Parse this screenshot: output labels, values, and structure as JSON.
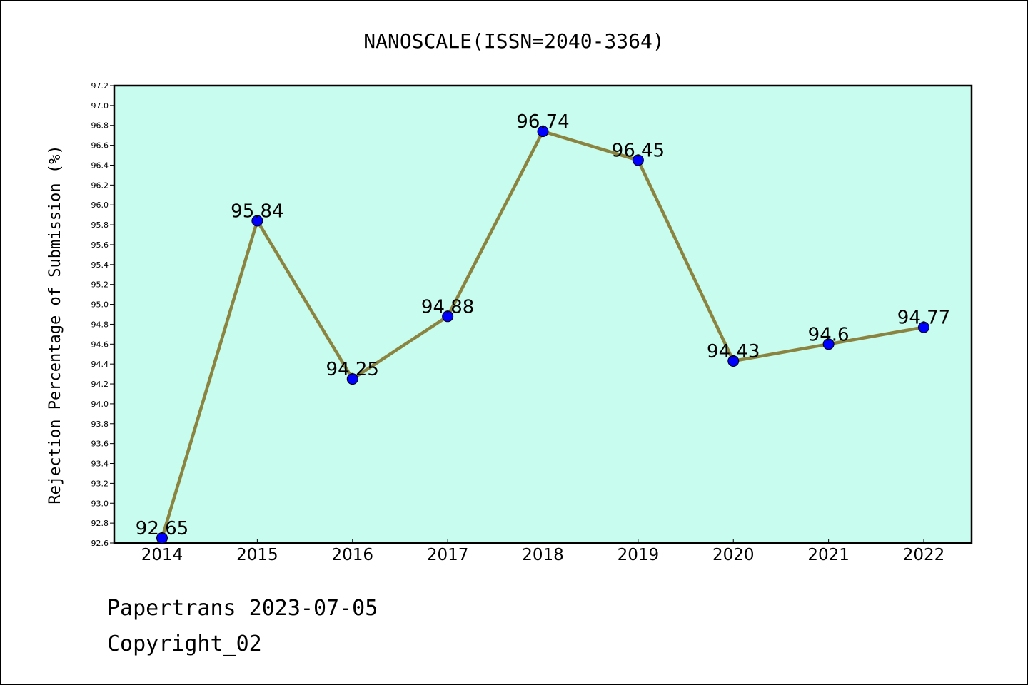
{
  "chart_data": {
    "type": "line",
    "title": "NANOSCALE(ISSN=2040-3364)",
    "xlabel": "",
    "ylabel": "Rejection Percentage of Submission (%)",
    "categories": [
      "2014",
      "2015",
      "2016",
      "2017",
      "2018",
      "2019",
      "2020",
      "2021",
      "2022"
    ],
    "series": [
      {
        "values": [
          92.65,
          95.84,
          94.25,
          94.88,
          96.74,
          96.45,
          94.43,
          94.6,
          94.77
        ],
        "labels": [
          "92.65",
          "95.84",
          "94.25",
          "94.88",
          "96.74",
          "96.45",
          "94.43",
          "94.6",
          "94.77"
        ],
        "line_color": "#8b8440",
        "marker_color": "#0000ff"
      }
    ],
    "ylim": [
      92.6,
      97.2
    ],
    "yticks": [
      "92.6",
      "92.8",
      "93.0",
      "93.2",
      "93.4",
      "93.6",
      "93.8",
      "94.0",
      "94.2",
      "94.4",
      "94.6",
      "94.8",
      "95.0",
      "95.2",
      "95.4",
      "95.6",
      "95.8",
      "96.0",
      "96.2",
      "96.4",
      "96.6",
      "96.8",
      "97.0",
      "97.2"
    ],
    "grid": false,
    "plot_background": "#c8fcee"
  },
  "footer": {
    "line1": "Papertrans 2023-07-05",
    "line2": "Copyright_02"
  }
}
